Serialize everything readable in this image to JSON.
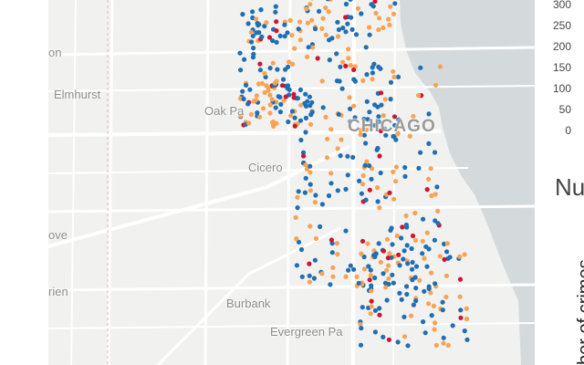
{
  "map": {
    "places": [
      {
        "id": "on",
        "label": "on"
      },
      {
        "id": "elmhurst",
        "label": "Elmhurst"
      },
      {
        "id": "oak-park",
        "label": "Oak Pa"
      },
      {
        "id": "chicago",
        "label": "CHICAGO"
      },
      {
        "id": "cicero",
        "label": "Cicero"
      },
      {
        "id": "ove",
        "label": "ove"
      },
      {
        "id": "rien",
        "label": "rien"
      },
      {
        "id": "burbank",
        "label": "Burbank"
      },
      {
        "id": "evergreen-park",
        "label": "Evergreen Pa"
      }
    ],
    "colors": {
      "land": "#f1f1f0",
      "water": "#d4dadc",
      "road": "#ffffff",
      "blue_dots": "#1f6fb2",
      "orange_dots": "#f7a354",
      "red_dots": "#cc1631"
    }
  },
  "side_chart": {
    "y_ticks": [
      "300",
      "250",
      "200",
      "150",
      "100",
      "50",
      "0"
    ],
    "title_fragment": "Nu",
    "y_axis_label": "ber of crimes"
  }
}
